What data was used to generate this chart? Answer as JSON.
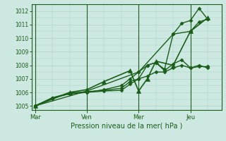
{
  "background_color": "#cce8e0",
  "grid_color": "#aad4cc",
  "line_color": "#1a5e1a",
  "marker_color": "#1a5e1a",
  "xlabel": "Pression niveau de la mer( hPa )",
  "ylim": [
    1004.7,
    1012.5
  ],
  "yticks": [
    1005,
    1006,
    1007,
    1008,
    1009,
    1010,
    1011,
    1012
  ],
  "day_labels": [
    "Mar",
    "Ven",
    "Mer",
    "Jeu"
  ],
  "day_positions": [
    0,
    30,
    60,
    90
  ],
  "xlim": [
    -2,
    108
  ],
  "series": [
    {
      "x": [
        0,
        10,
        20,
        30,
        40,
        50,
        55,
        60,
        65,
        70,
        75,
        80,
        85,
        90,
        95,
        100
      ],
      "y": [
        1005.0,
        1005.6,
        1005.9,
        1006.0,
        1006.2,
        1006.5,
        1007.0,
        1007.5,
        1008.0,
        1008.2,
        1007.7,
        1010.3,
        1011.1,
        1011.3,
        1012.2,
        1011.4
      ],
      "marker": "D",
      "markersize": 2.5,
      "linewidth": 1.0
    },
    {
      "x": [
        0,
        10,
        20,
        30,
        40,
        50,
        55,
        60,
        65,
        70,
        75,
        80,
        85,
        90,
        95,
        100
      ],
      "y": [
        1005.0,
        1005.6,
        1005.95,
        1006.05,
        1006.15,
        1006.3,
        1006.8,
        1007.0,
        1008.0,
        1008.2,
        1007.6,
        1008.1,
        1008.4,
        1007.8,
        1008.0,
        1007.8
      ],
      "marker": "D",
      "markersize": 2.5,
      "linewidth": 1.0
    },
    {
      "x": [
        0,
        10,
        20,
        30,
        40,
        50,
        55,
        60,
        65,
        70,
        75,
        80,
        85,
        90,
        95,
        100
      ],
      "y": [
        1005.0,
        1005.55,
        1005.9,
        1006.0,
        1006.1,
        1006.15,
        1006.6,
        1007.0,
        1007.2,
        1007.5,
        1007.5,
        1007.8,
        1008.0,
        1007.8,
        1007.9,
        1007.9
      ],
      "marker": "D",
      "markersize": 2.5,
      "linewidth": 1.0
    },
    {
      "x": [
        0,
        20,
        30,
        40,
        55,
        60,
        65,
        70,
        80,
        90,
        100
      ],
      "y": [
        1005.0,
        1006.0,
        1006.2,
        1006.8,
        1007.6,
        1006.1,
        1007.0,
        1008.3,
        1008.0,
        1010.5,
        1011.5
      ],
      "marker": "^",
      "markersize": 4,
      "linewidth": 1.2
    },
    {
      "x": [
        0,
        30,
        60,
        80,
        90,
        95,
        100
      ],
      "y": [
        1005.0,
        1006.1,
        1007.5,
        1010.3,
        1010.5,
        1011.2,
        1011.4
      ],
      "marker": "D",
      "markersize": 2.5,
      "linewidth": 1.0
    }
  ]
}
